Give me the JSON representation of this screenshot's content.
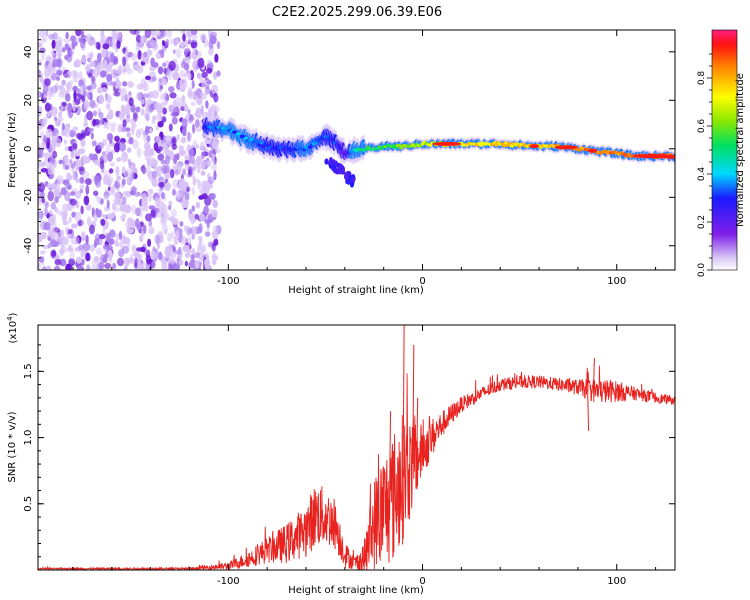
{
  "title": "C2E2.2025.299.06.39.E06",
  "colors": {
    "snr_line": "#e8231f",
    "axis": "#000000",
    "speckle_light": "#d9c3f7",
    "speckle_mid": "#a77cef",
    "speckle_dark": "#6a1ad8"
  },
  "chart_data": [
    {
      "type": "heatmap",
      "name": "spectrogram",
      "xlabel": "Height of straight line (km)",
      "ylabel": "Frequency (Hz)",
      "xlim": [
        -198,
        130
      ],
      "ylim": [
        -50,
        49
      ],
      "xticks": [
        -100,
        0,
        100
      ],
      "yticks": [
        40,
        20,
        0,
        -20,
        -40
      ],
      "xtick_labels": [
        "-100",
        "0",
        "100"
      ],
      "ytick_labels": [
        "40",
        "20",
        "0",
        "-20",
        "-40"
      ],
      "noise_region_x": [
        -198,
        -105
      ],
      "ridge": {
        "x": [
          -112,
          -100,
          -90,
          -80,
          -70,
          -60,
          -50,
          -45,
          -40,
          -35,
          -30,
          -20,
          -10,
          0,
          10,
          20,
          40,
          60,
          70,
          80,
          90,
          100,
          110,
          120,
          130
        ],
        "freq": [
          9,
          8,
          4,
          1,
          0,
          0,
          5,
          3,
          -2,
          -1,
          0,
          1,
          1,
          2,
          2,
          2,
          2,
          1,
          1,
          0,
          -1,
          -2,
          -3,
          -3,
          -3
        ],
        "amplitude": [
          0.3,
          0.35,
          0.35,
          0.3,
          0.3,
          0.35,
          0.3,
          0.3,
          0.2,
          0.45,
          0.5,
          0.55,
          0.6,
          0.65,
          0.7,
          0.75,
          0.75,
          0.75,
          0.8,
          0.85,
          0.8,
          0.85,
          0.9,
          0.9,
          0.9
        ]
      },
      "colorbar": {
        "label": "Normalized spectral amplitude",
        "range": [
          0,
          1
        ],
        "ticks": [
          0.0,
          0.2,
          0.4,
          0.6,
          0.8
        ],
        "tick_labels": [
          "0.0",
          "0.2",
          "0.4",
          "0.6",
          "0.8"
        ]
      }
    },
    {
      "type": "line",
      "name": "snr",
      "xlabel": "Height of straight line (km)",
      "ylabel": "SNR (10 * v/v)",
      "scale_label": "(x10",
      "scale_exponent": "4",
      "xlim": [
        -198,
        130
      ],
      "ylim": [
        0,
        1.85
      ],
      "xticks": [
        -100,
        0,
        100
      ],
      "yticks": [
        0.5,
        1.0,
        1.5
      ],
      "xtick_labels": [
        "-100",
        "0",
        "100"
      ],
      "ytick_labels": [
        "0.5",
        "1.0",
        "1.5"
      ],
      "envelope": {
        "x": [
          -198,
          -120,
          -100,
          -90,
          -80,
          -70,
          -60,
          -55,
          -50,
          -45,
          -40,
          -35,
          -30,
          -25,
          -20,
          -15,
          -10,
          -5,
          0,
          10,
          20,
          30,
          40,
          50,
          60,
          70,
          80,
          90,
          100,
          110,
          120,
          130
        ],
        "base": [
          0.01,
          0.01,
          0.03,
          0.08,
          0.15,
          0.2,
          0.3,
          0.42,
          0.4,
          0.35,
          0.12,
          0.05,
          0.08,
          0.35,
          0.45,
          0.55,
          0.7,
          0.8,
          0.9,
          1.1,
          1.25,
          1.33,
          1.4,
          1.42,
          1.42,
          1.4,
          1.38,
          1.35,
          1.35,
          1.33,
          1.3,
          1.28
        ],
        "noise": [
          0.005,
          0.008,
          0.03,
          0.06,
          0.1,
          0.15,
          0.2,
          0.25,
          0.22,
          0.2,
          0.1,
          0.05,
          0.15,
          0.35,
          0.45,
          0.5,
          0.5,
          0.35,
          0.2,
          0.1,
          0.06,
          0.05,
          0.05,
          0.05,
          0.05,
          0.05,
          0.06,
          0.1,
          0.08,
          0.05,
          0.04,
          0.03
        ]
      },
      "spikes": [
        [
          -17,
          1.2
        ],
        [
          -10,
          1.85
        ],
        [
          -5,
          1.7
        ],
        [
          -3,
          1.3
        ],
        [
          88,
          1.6
        ],
        [
          85,
          1.05
        ]
      ]
    }
  ]
}
